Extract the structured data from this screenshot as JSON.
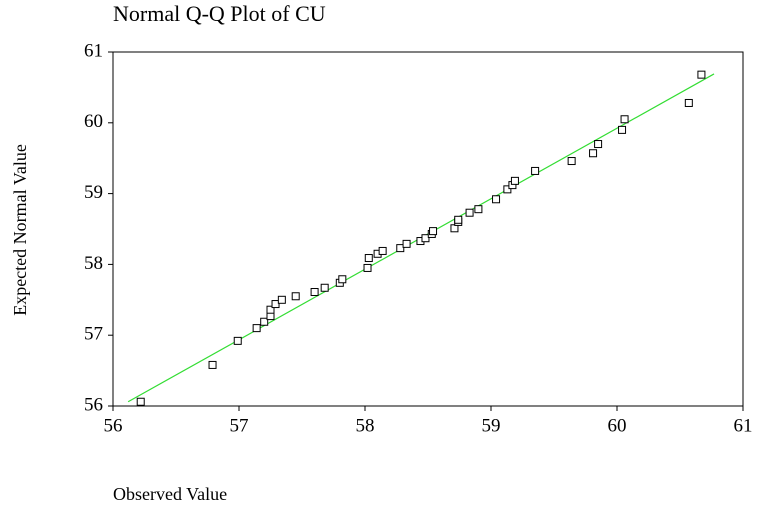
{
  "chart_data": {
    "type": "scatter",
    "title": "Normal Q-Q Plot of CU",
    "xlabel": "Observed Value",
    "ylabel": "Expected Normal Value",
    "x": [
      56.22,
      56.79,
      56.99,
      57.14,
      57.2,
      57.25,
      57.25,
      57.29,
      57.34,
      57.45,
      57.6,
      57.68,
      57.8,
      57.82,
      58.02,
      58.03,
      58.1,
      58.14,
      58.28,
      58.33,
      58.44,
      58.48,
      58.53,
      58.54,
      58.71,
      58.74,
      58.74,
      58.83,
      58.9,
      59.04,
      59.13,
      59.17,
      59.19,
      59.35,
      59.64,
      59.81,
      59.85,
      60.04,
      60.06,
      60.57,
      60.67
    ],
    "values": [
      56.06,
      56.58,
      56.92,
      57.1,
      57.19,
      57.27,
      57.36,
      57.44,
      57.5,
      57.55,
      57.61,
      57.67,
      57.74,
      57.79,
      57.95,
      58.09,
      58.15,
      58.19,
      58.23,
      58.29,
      58.33,
      58.37,
      58.43,
      58.47,
      58.51,
      58.6,
      58.63,
      58.73,
      58.78,
      58.92,
      59.06,
      59.12,
      59.18,
      59.32,
      59.46,
      59.57,
      59.7,
      59.9,
      60.05,
      60.28,
      60.68
    ],
    "color": "#000000",
    "reference_line": {
      "x": [
        56.12,
        60.77
      ],
      "values": [
        56.06,
        60.69
      ],
      "color": "#33dd33"
    },
    "xlim": [
      56,
      61
    ],
    "xticks": [
      56,
      57,
      58,
      59,
      60,
      61
    ],
    "ylim": [
      56,
      61
    ],
    "yticks": [
      56,
      57,
      58,
      59,
      60,
      61
    ]
  }
}
